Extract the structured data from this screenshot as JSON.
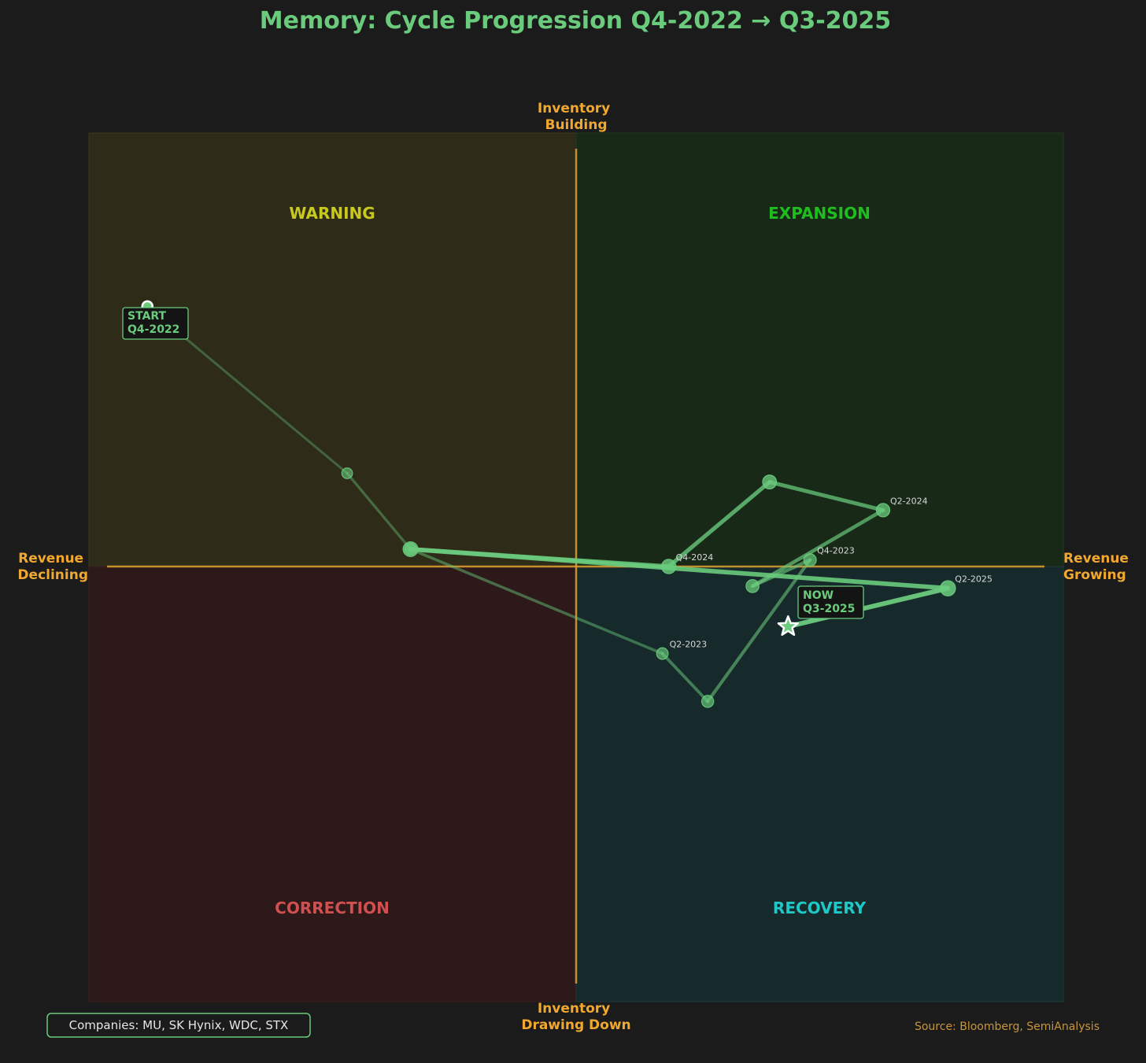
{
  "chart_data": {
    "type": "scatter",
    "title": "Memory: Cycle Progression Q4-2022 → Q3-2025",
    "axis_labels": {
      "top": [
        "Inventory",
        "Building"
      ],
      "bottom": [
        "Inventory",
        "Drawing Down"
      ],
      "left": [
        "Revenue",
        "Declining"
      ],
      "right": [
        "Revenue",
        "Growing"
      ]
    },
    "quadrants": {
      "top_left": {
        "label": "WARNING",
        "color": "#c8c81e"
      },
      "top_right": {
        "label": "EXPANSION",
        "color": "#1ebe1e"
      },
      "bottom_left": {
        "label": "CORRECTION",
        "color": "#d05050"
      },
      "bottom_right": {
        "label": "RECOVERY",
        "color": "#1ec8c8"
      }
    },
    "xlim": [
      -1,
      1
    ],
    "ylim": [
      -1,
      1
    ],
    "points": [
      {
        "x": -0.88,
        "y": 0.6,
        "label": ""
      },
      {
        "x": -0.47,
        "y": 0.215,
        "label": ""
      },
      {
        "x": -0.34,
        "y": 0.04,
        "label": ""
      },
      {
        "x": 0.177,
        "y": -0.2,
        "label": "Q2-2023"
      },
      {
        "x": 0.27,
        "y": -0.31,
        "label": ""
      },
      {
        "x": 0.48,
        "y": 0.015,
        "label": "Q4-2023"
      },
      {
        "x": 0.362,
        "y": -0.045,
        "label": ""
      },
      {
        "x": 0.63,
        "y": 0.13,
        "label": "Q2-2024"
      },
      {
        "x": 0.397,
        "y": 0.195,
        "label": ""
      },
      {
        "x": 0.19,
        "y": 0.0,
        "label": "Q4-2024"
      },
      {
        "x": -0.34,
        "y": 0.04,
        "label": ""
      },
      {
        "x": 0.763,
        "y": -0.05,
        "label": "Q2-2025"
      },
      {
        "x": 0.435,
        "y": -0.138,
        "label": ""
      }
    ],
    "start_label": [
      "START",
      "Q4-2022"
    ],
    "now_label": [
      "NOW",
      "Q3-2025"
    ],
    "colors": {
      "line": "#6acb7d",
      "axis": "#e0a030",
      "background": "#1b1b1b"
    }
  },
  "footer": {
    "companies": "Companies: MU, SK Hynix, WDC, STX",
    "source": "Source: Bloomberg, SemiAnalysis"
  }
}
